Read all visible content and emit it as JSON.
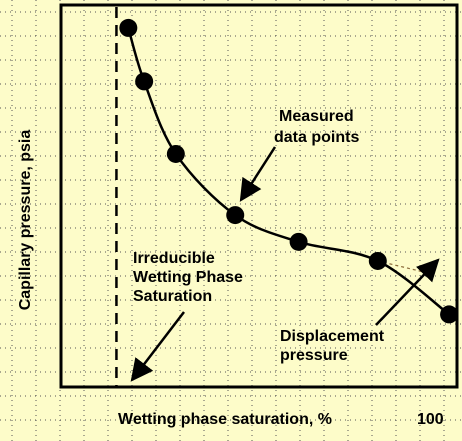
{
  "chart_data": {
    "type": "scatter",
    "title": "",
    "xlabel": "Wetting phase saturation, %",
    "ylabel": "Capillary pressure, psia",
    "x_tick_labels": [
      {
        "x": 100,
        "label": "100"
      }
    ],
    "xlim": [
      0,
      100
    ],
    "ylim": [
      0,
      100
    ],
    "grid": true,
    "series": [
      {
        "points": [
          {
            "x": 17,
            "y": 94
          },
          {
            "x": 21,
            "y": 80
          },
          {
            "x": 29,
            "y": 61
          },
          {
            "x": 44,
            "y": 45
          },
          {
            "x": 60,
            "y": 38
          },
          {
            "x": 80,
            "y": 33
          },
          {
            "x": 98,
            "y": 19
          }
        ]
      }
    ],
    "irreducible_saturation_x": 14,
    "annotations": [
      {
        "name": "measured-data-points",
        "lines": [
          "Measured",
          "data points"
        ]
      },
      {
        "name": "irreducible-saturation",
        "lines": [
          "Irreducible",
          "Wetting Phase",
          "Saturation"
        ]
      },
      {
        "name": "displacement-pressure",
        "lines": [
          "Displacement",
          "pressure"
        ]
      }
    ]
  },
  "colors": {
    "background": "#fdfcc9",
    "ink": "#000000",
    "grid": "#555555",
    "extrapolation": "#8a6a3a"
  }
}
